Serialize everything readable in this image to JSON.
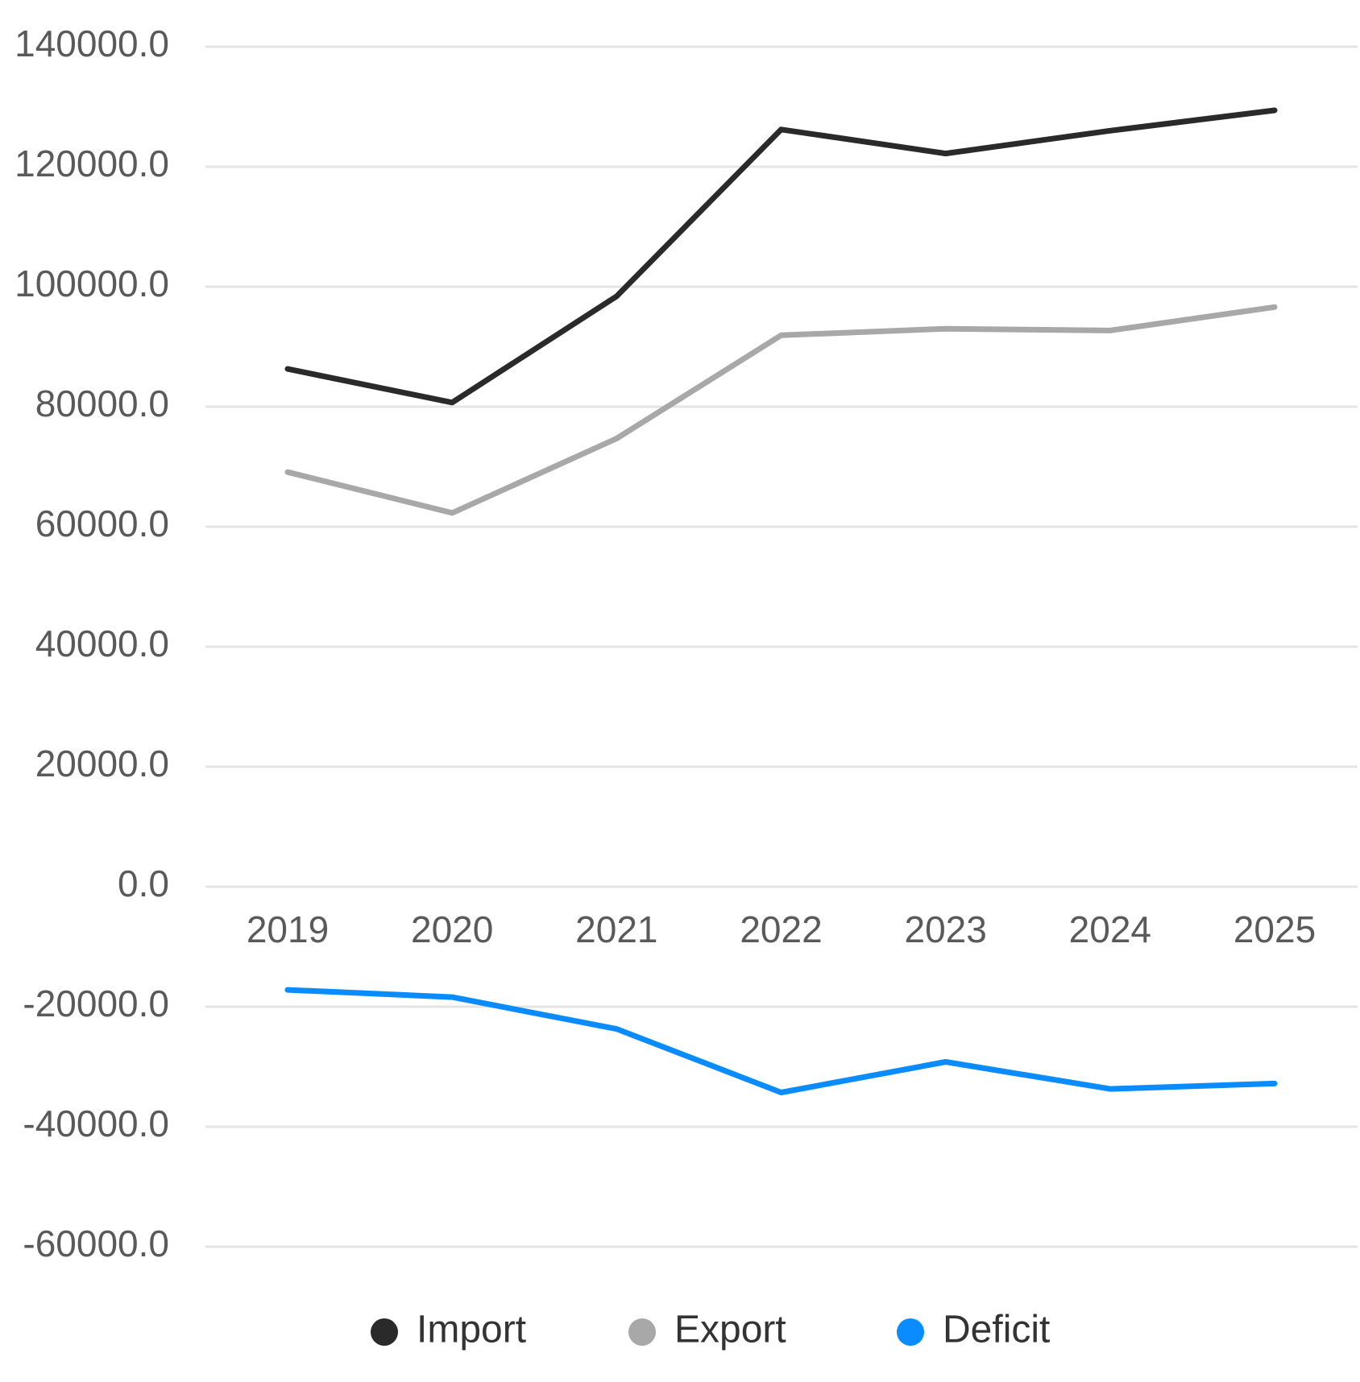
{
  "chart_data": {
    "type": "line",
    "categories": [
      "2019",
      "2020",
      "2021",
      "2022",
      "2023",
      "2024",
      "2025"
    ],
    "series": [
      {
        "name": "Import",
        "color": "#2a2a2a",
        "values": [
          86300,
          80700,
          98400,
          126200,
          122200,
          126000,
          129400
        ]
      },
      {
        "name": "Export",
        "color": "#a8a8a8",
        "values": [
          69100,
          62300,
          74700,
          91900,
          93000,
          92700,
          96600
        ]
      },
      {
        "name": "Deficit",
        "color": "#0a8cff",
        "values": [
          -17200,
          -18400,
          -23700,
          -34300,
          -29200,
          -33700,
          -32800
        ]
      }
    ],
    "y_ticks": [
      "140000.0",
      "120000.0",
      "100000.0",
      "80000.0",
      "60000.0",
      "40000.0",
      "20000.0",
      "0.0",
      "-20000.0",
      "-40000.0",
      "-60000.0"
    ],
    "y_tick_values": [
      140000,
      120000,
      100000,
      80000,
      60000,
      40000,
      20000,
      0,
      -20000,
      -40000,
      -60000
    ],
    "ylim": [
      -60000,
      140000
    ],
    "title": "",
    "xlabel": "",
    "ylabel": "",
    "grid": "horizontal",
    "legend_position": "bottom-center",
    "x_axis_position": "zero-line"
  }
}
